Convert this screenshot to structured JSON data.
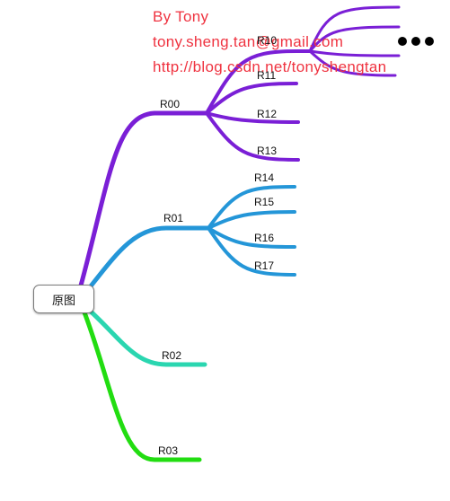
{
  "root": {
    "label": "原图"
  },
  "watermark": {
    "line1": "By Tony",
    "line2": "tony.sheng.tan@gmail.com",
    "line3": "http://blog.csdn.net/tonyshengtan",
    "color": "#ef3340"
  },
  "branches": [
    {
      "label": "R00",
      "color": "#7a1fd6",
      "children": [
        "R10",
        "R11",
        "R12",
        "R13"
      ]
    },
    {
      "label": "R01",
      "color": "#2496d8",
      "children": [
        "R14",
        "R15",
        "R16",
        "R17"
      ]
    },
    {
      "label": "R02",
      "color": "#2ad6b0",
      "children": []
    },
    {
      "label": "R03",
      "color": "#22dd11",
      "children": []
    }
  ],
  "more_indicator": "ellipsis"
}
